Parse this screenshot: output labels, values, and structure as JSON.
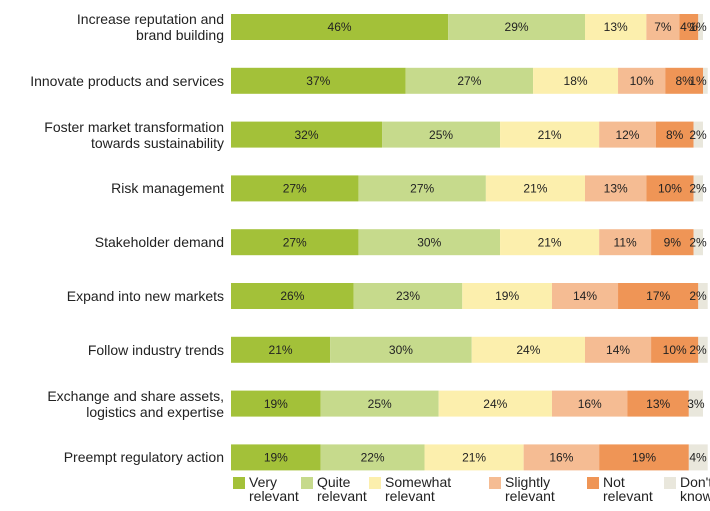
{
  "chart_data": {
    "type": "stacked-barh",
    "categories": [
      "Increase reputation and\nbrand building",
      "Innovate products and services",
      "Foster market transformation\ntowards sustainability",
      "Risk management",
      "Stakeholder demand",
      "Expand into new markets",
      "Follow industry trends",
      "Exchange and share assets,\nlogistics and expertise",
      "Preempt regulatory action"
    ],
    "xlim": [
      0,
      100
    ],
    "series": [
      {
        "name": "Very\nrelevant",
        "color": "#a3c139",
        "values": [
          46,
          37,
          32,
          27,
          27,
          26,
          21,
          19,
          19
        ],
        "value_labels": [
          "46%",
          "37%",
          "32%",
          "27%",
          "27%",
          "26%",
          "21%",
          "19%",
          "19%"
        ]
      },
      {
        "name": "Quite\nrelevant",
        "color": "#c6da8c",
        "values": [
          29,
          27,
          25,
          27,
          30,
          23,
          30,
          25,
          22
        ],
        "value_labels": [
          "29%",
          "27%",
          "25%",
          "27%",
          "30%",
          "23%",
          "30%",
          "25%",
          "22%"
        ]
      },
      {
        "name": "Somewhat\nrelevant",
        "color": "#fcefad",
        "values": [
          13,
          18,
          21,
          21,
          21,
          19,
          24,
          24,
          21
        ],
        "value_labels": [
          "13%",
          "18%",
          "21%",
          "21%",
          "21%",
          "19%",
          "24%",
          "24%",
          "21%"
        ]
      },
      {
        "name": "Slightly\nrelevant",
        "color": "#f5bc93",
        "values": [
          7,
          10,
          12,
          13,
          11,
          14,
          14,
          16,
          16
        ],
        "value_labels": [
          "7%",
          "10%",
          "12%",
          "13%",
          "11%",
          "14%",
          "14%",
          "16%",
          "16%"
        ]
      },
      {
        "name": "Not\nrelevant",
        "color": "#ef9556",
        "values": [
          4,
          8,
          8,
          10,
          9,
          17,
          10,
          13,
          19
        ],
        "value_labels": [
          "4%",
          "8%",
          "8%",
          "10%",
          "9%",
          "17%",
          "10%",
          "13%",
          "19%"
        ]
      },
      {
        "name": "Don't\nknow",
        "color": "#e9e7dc",
        "values": [
          1,
          1,
          2,
          2,
          2,
          2,
          2,
          3,
          4
        ],
        "value_labels": [
          "1%",
          "1%",
          "2%",
          "2%",
          "2%",
          "2%",
          "2%",
          "3%",
          "4%"
        ]
      }
    ]
  }
}
